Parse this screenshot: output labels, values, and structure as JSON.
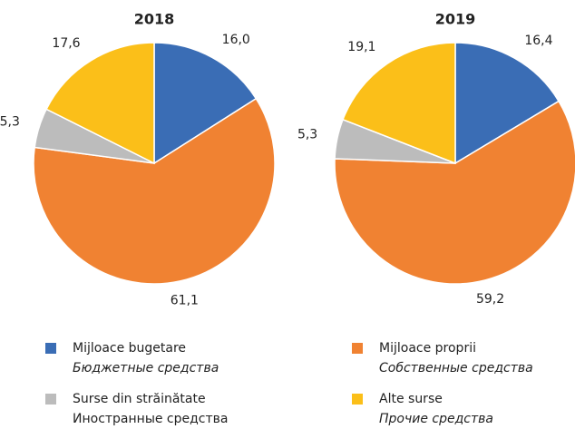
{
  "categories": [
    {
      "name": "Mijloace bugetare",
      "translation": "Бюджетные средства",
      "italic": true
    },
    {
      "name": "Mijloace proprii",
      "translation": "Собственные средства",
      "italic": true
    },
    {
      "name": "Surse din străinătate",
      "translation": "Иностранные средства",
      "italic": false
    },
    {
      "name": "Alte surse",
      "translation": "Прочие средства",
      "italic": true
    }
  ],
  "colors": [
    "#3a6db5",
    "#f08232",
    "#bcbcbc",
    "#fbbf19"
  ],
  "chart_data": [
    {
      "type": "pie",
      "title": "2018",
      "values": [
        16.0,
        61.1,
        5.3,
        17.6
      ],
      "value_labels": [
        "16,0",
        "61,1",
        "5,3",
        "17,6"
      ]
    },
    {
      "type": "pie",
      "title": "2019",
      "values": [
        16.4,
        59.2,
        5.3,
        19.1
      ],
      "value_labels": [
        "16,4",
        "59,2",
        "5,3",
        "19,1"
      ]
    }
  ]
}
